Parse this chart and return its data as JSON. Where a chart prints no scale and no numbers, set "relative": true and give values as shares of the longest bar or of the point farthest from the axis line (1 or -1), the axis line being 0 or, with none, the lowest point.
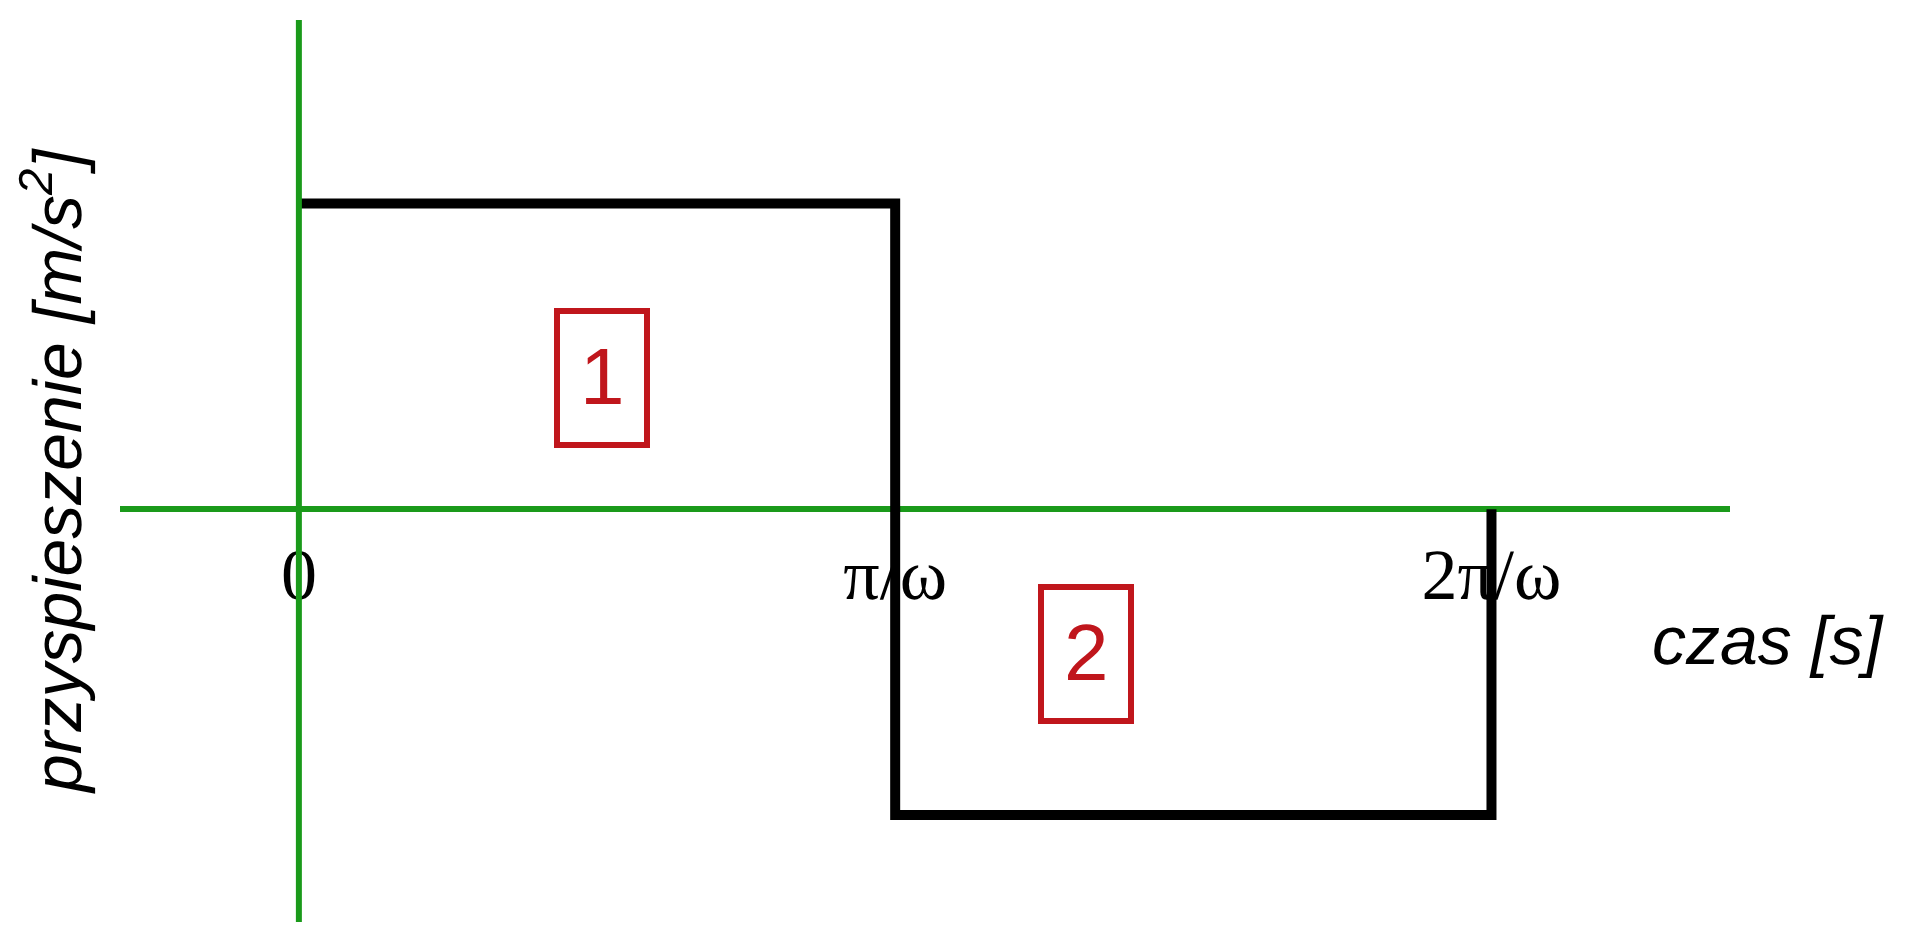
{
  "chart_data": {
    "type": "step",
    "relative": true,
    "xlabel": "czas [s]",
    "ylabel": "przyspieszenie [m/s$^{2}$]",
    "x": [
      0,
      1,
      2
    ],
    "series": [
      {
        "color": "#000000",
        "values": [
          1,
          -1,
          0
        ]
      }
    ],
    "xlim": [
      -0.3,
      2.4
    ],
    "xticks": [
      0,
      {
        "value": 1,
        "label": "π/ω"
      },
      {
        "value": 2,
        "label": "2π/ω"
      }
    ],
    "tick_labels": "x",
    "ref_lines": [
      {
        "axis": "x",
        "value": 0,
        "color": "#1a9a1a"
      }
    ],
    "annotations": [
      "1",
      "2"
    ]
  }
}
